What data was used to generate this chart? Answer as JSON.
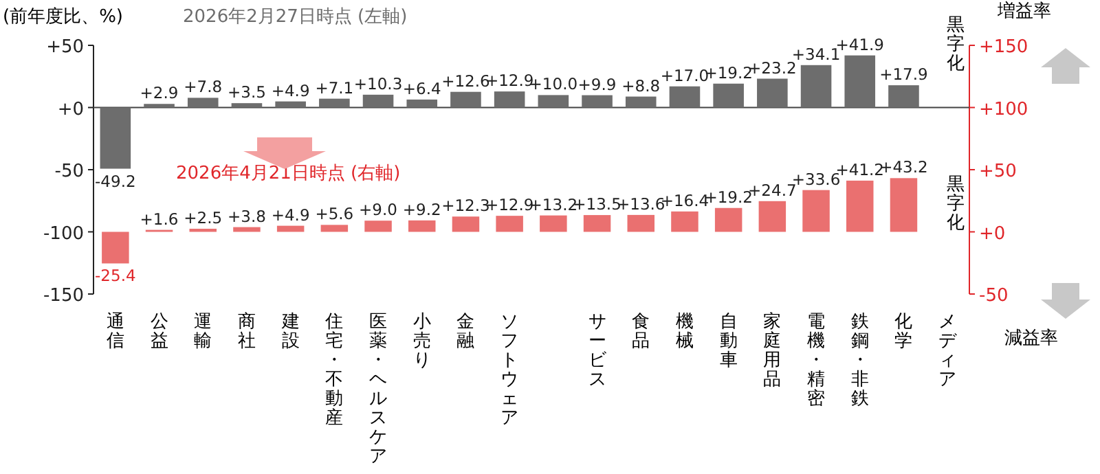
{
  "chart_data": {
    "type": "bar",
    "ylabel": "(前年度比、%)",
    "categories": [
      "通信",
      "公益",
      "運輸",
      "商社",
      "建設",
      "住宅・不動産",
      "医薬・ヘルスケア",
      "小売り",
      "金融",
      "ソフトウェア",
      null,
      "サービス",
      "食品",
      "機械",
      "自動車",
      "家庭用品",
      "電機・精密",
      "鉄鋼・非鉄",
      "化学",
      "メディア"
    ],
    "series": [
      {
        "name": "2026年2月27日時点 (左軸)",
        "color": "#6d6d6d",
        "values": [
          -49.2,
          2.9,
          7.8,
          3.5,
          4.9,
          7.1,
          10.3,
          6.4,
          12.6,
          12.9,
          10.0,
          9.9,
          8.8,
          17.0,
          19.2,
          23.2,
          34.1,
          41.9,
          17.9,
          null
        ],
        "value_labels": [
          "-49.2",
          "+2.9",
          "+7.8",
          "+3.5",
          "+4.9",
          "+7.1",
          "+10.3",
          "+6.4",
          "+12.6",
          "+12.9",
          "+10.0",
          "+9.9",
          "+8.8",
          "+17.0",
          "+19.2",
          "+23.2",
          "+34.1",
          "+41.9",
          "+17.9",
          null
        ]
      },
      {
        "name": "2026年4月21日時点 (右軸)",
        "color": "#ea7070",
        "axis": "y2",
        "values": [
          -25.4,
          1.6,
          2.5,
          3.8,
          4.9,
          5.6,
          9.0,
          9.2,
          12.3,
          12.9,
          13.2,
          13.5,
          13.6,
          16.4,
          19.2,
          24.7,
          33.6,
          41.2,
          43.2,
          null
        ],
        "value_labels": [
          "-25.4",
          "+1.6",
          "+2.5",
          "+3.8",
          "+4.9",
          "+5.6",
          "+9.0",
          "+9.2",
          "+12.3",
          "+12.9",
          "+13.2",
          "+13.5",
          "+13.6",
          "+16.4",
          "+19.2",
          "+24.7",
          "+33.6",
          "+41.2",
          "+43.2",
          null
        ]
      }
    ],
    "ylim": [
      -150,
      50
    ],
    "yticks": [
      {
        "value": 50,
        "label": "+50"
      },
      {
        "value": 0,
        "label": "+0"
      },
      -50,
      -100,
      -150
    ],
    "y2lim": [
      -50,
      150
    ],
    "y2ticks": [
      {
        "value": 150,
        "label": "+150"
      },
      {
        "value": 100,
        "label": "+100"
      },
      {
        "value": 50,
        "label": "+50"
      },
      {
        "value": 0,
        "label": "+0"
      },
      -50
    ],
    "annotations": [
      "黒字化",
      "黒字化",
      "増益率",
      "減益率"
    ]
  }
}
